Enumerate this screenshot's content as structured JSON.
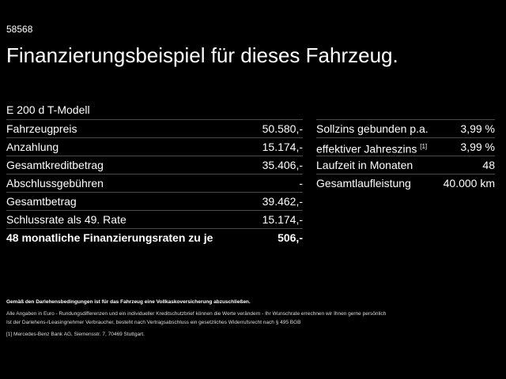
{
  "code": "58568",
  "title": "Finanzierungsbeispiel für dieses Fahrzeug.",
  "model": "E 200 d T-Modell",
  "left_rows": [
    {
      "label": "Fahrzeugpreis",
      "value": "50.580,-"
    },
    {
      "label": "Anzahlung",
      "value": "15.174,-"
    },
    {
      "label": "Gesamtkreditbetrag",
      "value": "35.406,-"
    },
    {
      "label": "Abschlussgebühren",
      "value": "-"
    },
    {
      "label": "Gesamtbetrag",
      "value": "39.462,-"
    },
    {
      "label": "Schlussrate als 49. Rate",
      "value": "15.174,-"
    },
    {
      "label": "48 monatliche Finanzierungsraten zu je",
      "value": "506,-"
    }
  ],
  "right_rows": [
    {
      "label": "Sollzins gebunden p.a.",
      "sup": "",
      "value": "3,99 %"
    },
    {
      "label": "effektiver Jahreszins",
      "sup": "[1]",
      "value": "3,99 %"
    },
    {
      "label": "Laufzeit in Monaten",
      "sup": "",
      "value": "48"
    },
    {
      "label": "Gesamtlaufleistung",
      "sup": "",
      "value": "40.000 km"
    }
  ],
  "footnotes": {
    "insurance": "Gemäß den Darlehensbedingungen ist für das Fahrzeug eine Vollkaskoversicherung abzuschließen.",
    "line1": "Alle Angaben in Euro - Rundungsdifferenzen und ein individueller Kreditschutzbrief können die Werte verändern - Ihr Wunschrate errechnen wir Ihnen gerne persönlich",
    "line2": "Ist der Darlehens-/Leasingnehmer Verbraucher, besteht nach Vertragsabschluss ein gesetzliches Widerrufsrecht nach § 495 BGB",
    "ref": "[1]  Mercedes-Benz Bank AG, Siemensstr. 7, 70469 Stuttgart."
  }
}
